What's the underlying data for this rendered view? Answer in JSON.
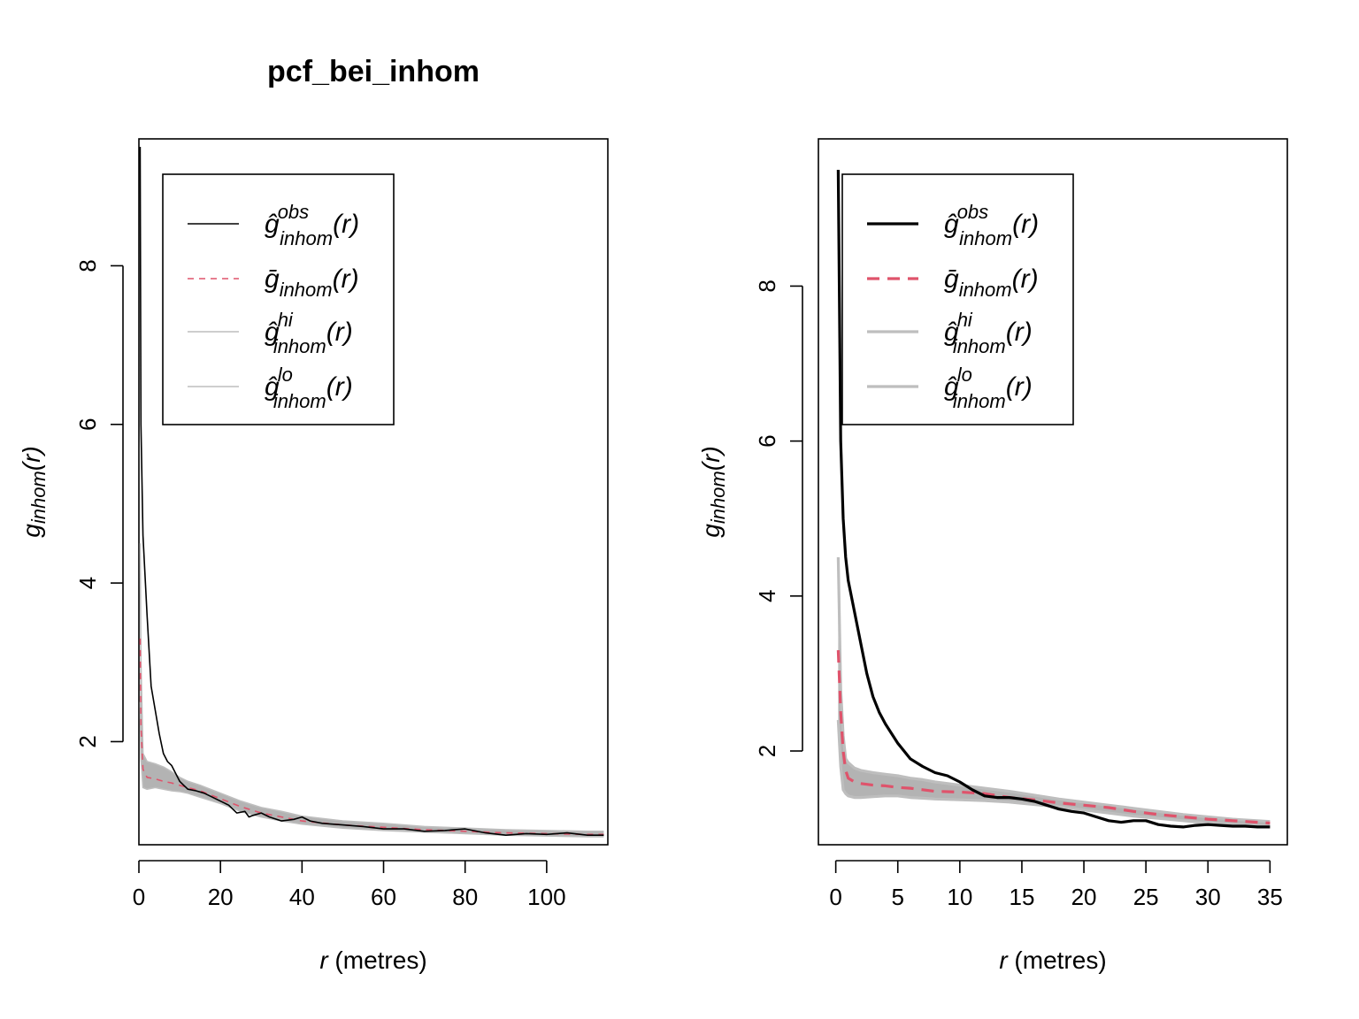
{
  "figure_title": "pcf_bei_inhom",
  "colors": {
    "obs": "#000000",
    "theo": "#DF536B",
    "envelope": "#BEBEBE",
    "envelope_band": "#B3B3B3"
  },
  "chart_data": [
    {
      "type": "line",
      "title": "pcf_bei_inhom",
      "xlabel": {
        "italic": "r",
        "rest": " (metres)"
      },
      "ylabel": {
        "base": "g",
        "sub": "inhom",
        "arg": "(r)"
      },
      "xlim": [
        0,
        115
      ],
      "ylim": [
        0.7,
        9.6
      ],
      "xticks": [
        0,
        20,
        40,
        60,
        80,
        100
      ],
      "yticks": [
        2,
        4,
        6,
        8
      ],
      "legend_position": "top-left",
      "legend": [
        {
          "key": "obs",
          "base": "ĝ",
          "sup": "obs",
          "sub": "inhom",
          "arg": "(r)"
        },
        {
          "key": "mmean",
          "base": "ḡ",
          "sup": "",
          "sub": "inhom",
          "arg": "(r)"
        },
        {
          "key": "hi",
          "base": "ĝ",
          "sup": "hi",
          "sub": "inhom",
          "arg": "(r)"
        },
        {
          "key": "lo",
          "base": "ĝ",
          "sup": "lo",
          "sub": "inhom",
          "arg": "(r)"
        }
      ],
      "series": [
        {
          "name": "obs",
          "style": "solid",
          "x": [
            0.3,
            0.5,
            1,
            1.5,
            2,
            3,
            4,
            5,
            6,
            7,
            8,
            9,
            10,
            11,
            12,
            14,
            16,
            18,
            20,
            22,
            24,
            26,
            27,
            28,
            30,
            32,
            35,
            38,
            40,
            42,
            45,
            50,
            55,
            60,
            65,
            70,
            75,
            80,
            85,
            90,
            95,
            100,
            105,
            110,
            114
          ],
          "y": [
            9.5,
            6.0,
            4.6,
            4.1,
            3.6,
            2.7,
            2.4,
            2.1,
            1.85,
            1.75,
            1.7,
            1.6,
            1.5,
            1.45,
            1.4,
            1.38,
            1.35,
            1.3,
            1.25,
            1.2,
            1.1,
            1.12,
            1.05,
            1.07,
            1.1,
            1.05,
            1.0,
            1.02,
            1.05,
            1.0,
            0.97,
            0.95,
            0.93,
            0.9,
            0.9,
            0.87,
            0.88,
            0.9,
            0.85,
            0.82,
            0.84,
            0.83,
            0.85,
            0.82,
            0.82
          ]
        },
        {
          "name": "mmean",
          "style": "dashed",
          "x": [
            0.3,
            0.5,
            1,
            2,
            4,
            6,
            8,
            10,
            12,
            15,
            20,
            25,
            30,
            35,
            40,
            50,
            60,
            70,
            80,
            90,
            100,
            110,
            114
          ],
          "y": [
            3.3,
            2.2,
            1.65,
            1.55,
            1.53,
            1.5,
            1.48,
            1.45,
            1.42,
            1.38,
            1.28,
            1.18,
            1.1,
            1.05,
            1.0,
            0.95,
            0.92,
            0.89,
            0.87,
            0.85,
            0.84,
            0.83,
            0.83
          ]
        },
        {
          "name": "hi",
          "style": "solid",
          "x": [
            0.3,
            0.5,
            1,
            2,
            4,
            6,
            8,
            10,
            12,
            15,
            20,
            25,
            30,
            35,
            40,
            50,
            60,
            70,
            80,
            90,
            100,
            110,
            114
          ],
          "y": [
            4.5,
            3.0,
            1.85,
            1.75,
            1.72,
            1.68,
            1.62,
            1.55,
            1.5,
            1.45,
            1.35,
            1.25,
            1.17,
            1.12,
            1.06,
            1.0,
            0.97,
            0.93,
            0.91,
            0.89,
            0.88,
            0.87,
            0.87
          ]
        },
        {
          "name": "lo",
          "style": "solid",
          "x": [
            0.3,
            0.5,
            1,
            2,
            4,
            6,
            8,
            10,
            12,
            15,
            20,
            25,
            30,
            35,
            40,
            50,
            60,
            70,
            80,
            90,
            100,
            110,
            114
          ],
          "y": [
            2.5,
            1.8,
            1.42,
            1.4,
            1.42,
            1.4,
            1.38,
            1.37,
            1.35,
            1.3,
            1.22,
            1.12,
            1.05,
            1.0,
            0.96,
            0.91,
            0.88,
            0.86,
            0.84,
            0.82,
            0.81,
            0.8,
            0.8
          ]
        }
      ]
    },
    {
      "type": "line",
      "title": "",
      "xlabel": {
        "italic": "r",
        "rest": " (metres)"
      },
      "ylabel": {
        "base": "g",
        "sub": "inhom",
        "arg": "(r)"
      },
      "xlim": [
        -1.4,
        36.4
      ],
      "ylim": [
        0.79,
        9.9
      ],
      "xticks": [
        0,
        5,
        10,
        15,
        20,
        25,
        30,
        35
      ],
      "yticks": [
        2,
        4,
        6,
        8
      ],
      "legend_position": "top-left",
      "legend": [
        {
          "key": "obs",
          "base": "ĝ",
          "sup": "obs",
          "sub": "inhom",
          "arg": "(r)"
        },
        {
          "key": "mmean",
          "base": "ḡ",
          "sup": "",
          "sub": "inhom",
          "arg": "(r)"
        },
        {
          "key": "hi",
          "base": "ĝ",
          "sup": "hi",
          "sub": "inhom",
          "arg": "(r)"
        },
        {
          "key": "lo",
          "base": "ĝ",
          "sup": "lo",
          "sub": "inhom",
          "arg": "(r)"
        }
      ],
      "series": [
        {
          "name": "obs",
          "style": "solid",
          "x": [
            0.2,
            0.4,
            0.6,
            0.8,
            1,
            1.5,
            2,
            2.5,
            3,
            3.5,
            4,
            5,
            6,
            7,
            8,
            9,
            10,
            11,
            12,
            13,
            14,
            15,
            16,
            17,
            18,
            19,
            20,
            21,
            22,
            23,
            24,
            25,
            26,
            27,
            28,
            29,
            30,
            31,
            32,
            33,
            34,
            35
          ],
          "y": [
            9.5,
            6.0,
            5.0,
            4.5,
            4.2,
            3.8,
            3.4,
            3.0,
            2.7,
            2.5,
            2.35,
            2.1,
            1.9,
            1.8,
            1.72,
            1.68,
            1.6,
            1.5,
            1.42,
            1.4,
            1.4,
            1.38,
            1.35,
            1.3,
            1.25,
            1.22,
            1.2,
            1.15,
            1.1,
            1.08,
            1.1,
            1.1,
            1.05,
            1.03,
            1.02,
            1.04,
            1.05,
            1.04,
            1.03,
            1.03,
            1.02,
            1.02
          ]
        },
        {
          "name": "mmean",
          "style": "dashed",
          "x": [
            0.2,
            0.4,
            0.6,
            0.8,
            1,
            1.5,
            2,
            3,
            4,
            5,
            6,
            7,
            8,
            10,
            12,
            14,
            16,
            18,
            20,
            22,
            24,
            26,
            28,
            30,
            32,
            35
          ],
          "y": [
            3.3,
            2.5,
            2.0,
            1.75,
            1.65,
            1.6,
            1.58,
            1.56,
            1.55,
            1.53,
            1.52,
            1.5,
            1.48,
            1.47,
            1.45,
            1.4,
            1.37,
            1.33,
            1.3,
            1.27,
            1.22,
            1.18,
            1.15,
            1.12,
            1.1,
            1.07
          ]
        },
        {
          "name": "hi",
          "style": "solid",
          "x": [
            0.2,
            0.4,
            0.6,
            0.8,
            1,
            1.5,
            2,
            3,
            4,
            5,
            6,
            7,
            8,
            10,
            12,
            14,
            16,
            18,
            20,
            22,
            24,
            26,
            28,
            30,
            32,
            35
          ],
          "y": [
            4.5,
            2.8,
            2.2,
            1.9,
            1.85,
            1.78,
            1.75,
            1.72,
            1.7,
            1.68,
            1.65,
            1.63,
            1.6,
            1.56,
            1.52,
            1.48,
            1.43,
            1.38,
            1.34,
            1.3,
            1.26,
            1.22,
            1.18,
            1.15,
            1.12,
            1.09
          ]
        },
        {
          "name": "lo",
          "style": "solid",
          "x": [
            0.2,
            0.4,
            0.6,
            0.8,
            1,
            1.5,
            2,
            3,
            4,
            5,
            6,
            7,
            8,
            10,
            12,
            14,
            16,
            18,
            20,
            22,
            24,
            26,
            28,
            30,
            32,
            35
          ],
          "y": [
            2.4,
            1.8,
            1.5,
            1.45,
            1.42,
            1.4,
            1.4,
            1.41,
            1.42,
            1.42,
            1.4,
            1.39,
            1.38,
            1.37,
            1.36,
            1.34,
            1.31,
            1.28,
            1.24,
            1.2,
            1.16,
            1.13,
            1.1,
            1.07,
            1.05,
            1.03
          ]
        }
      ]
    }
  ]
}
